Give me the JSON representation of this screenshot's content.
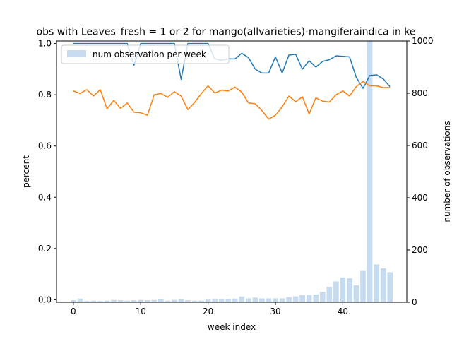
{
  "chart_data": {
    "type": "bar+line",
    "title": "obs with Leaves_fresh = 1 or 2 for mango(allvarieties)-mangiferaindica in ke",
    "xlabel": "week index",
    "ylabel_left": "percent",
    "ylabel_right": "number of observations",
    "xlim": [
      -2.5,
      49.5
    ],
    "ylim_left": [
      -0.01,
      1.01
    ],
    "ylim_right": [
      0,
      1000
    ],
    "xticks": [
      0,
      10,
      20,
      30,
      40
    ],
    "yticks_left": [
      0.0,
      0.2,
      0.4,
      0.6,
      0.8,
      1.0
    ],
    "yticks_right": [
      0,
      200,
      400,
      600,
      800,
      1000
    ],
    "legend": {
      "position": "top-left",
      "entries": [
        "num observation per week"
      ]
    },
    "colors": {
      "bars": "#c6dbef",
      "series1": "#1f77b4",
      "series2": "#ff7f0e"
    },
    "bars": {
      "name": "num observation per week",
      "x": [
        0,
        1,
        2,
        3,
        4,
        5,
        6,
        7,
        8,
        9,
        10,
        11,
        12,
        13,
        14,
        15,
        16,
        17,
        18,
        19,
        20,
        21,
        22,
        23,
        24,
        25,
        26,
        27,
        28,
        29,
        30,
        31,
        32,
        33,
        34,
        35,
        36,
        37,
        38,
        39,
        40,
        41,
        42,
        43,
        44,
        45,
        46,
        47
      ],
      "values": [
        8,
        14,
        5,
        6,
        5,
        6,
        9,
        8,
        6,
        8,
        9,
        8,
        9,
        13,
        6,
        9,
        12,
        8,
        6,
        6,
        11,
        13,
        12,
        13,
        14,
        22,
        15,
        18,
        15,
        15,
        15,
        15,
        20,
        23,
        27,
        28,
        30,
        40,
        60,
        80,
        95,
        92,
        65,
        120,
        1000,
        145,
        130,
        115
      ]
    },
    "series": [
      {
        "x": [
          0,
          1,
          2,
          3,
          4,
          5,
          6,
          7,
          8,
          9,
          10,
          11,
          12,
          13,
          14,
          15,
          16,
          17,
          18,
          19,
          20,
          21,
          22,
          23,
          24,
          25,
          26,
          27,
          28,
          29,
          30,
          31,
          32,
          33,
          34,
          35,
          36,
          37,
          38,
          39,
          40,
          41,
          42,
          43,
          44,
          45,
          46,
          47
        ],
        "values": [
          1.0,
          1.0,
          1.0,
          1.0,
          1.0,
          1.0,
          1.0,
          1.0,
          1.0,
          0.915,
          1.0,
          1.0,
          1.0,
          1.0,
          1.0,
          1.0,
          0.86,
          1.0,
          1.0,
          1.0,
          1.0,
          0.94,
          0.935,
          0.94,
          0.94,
          0.962,
          0.945,
          0.9,
          0.885,
          0.885,
          0.948,
          0.885,
          0.955,
          0.958,
          0.9,
          0.933,
          0.908,
          0.93,
          0.937,
          0.952,
          0.95,
          0.948,
          0.868,
          0.825,
          0.875,
          0.878,
          0.862,
          0.832
        ]
      },
      {
        "x": [
          0,
          1,
          2,
          3,
          4,
          5,
          6,
          7,
          8,
          9,
          10,
          11,
          12,
          13,
          14,
          15,
          16,
          17,
          18,
          19,
          20,
          21,
          22,
          23,
          24,
          25,
          26,
          27,
          28,
          29,
          30,
          31,
          32,
          33,
          34,
          35,
          36,
          37,
          38,
          39,
          40,
          41,
          42,
          43,
          44,
          45,
          46,
          47
        ],
        "values": [
          0.815,
          0.805,
          0.82,
          0.795,
          0.82,
          0.745,
          0.778,
          0.747,
          0.768,
          0.732,
          0.73,
          0.72,
          0.8,
          0.805,
          0.79,
          0.812,
          0.795,
          0.742,
          0.77,
          0.805,
          0.835,
          0.807,
          0.818,
          0.815,
          0.83,
          0.81,
          0.768,
          0.765,
          0.738,
          0.705,
          0.72,
          0.753,
          0.795,
          0.773,
          0.792,
          0.725,
          0.788,
          0.775,
          0.772,
          0.8,
          0.815,
          0.795,
          0.832,
          0.852,
          0.835,
          0.835,
          0.828,
          0.828
        ]
      }
    ]
  }
}
